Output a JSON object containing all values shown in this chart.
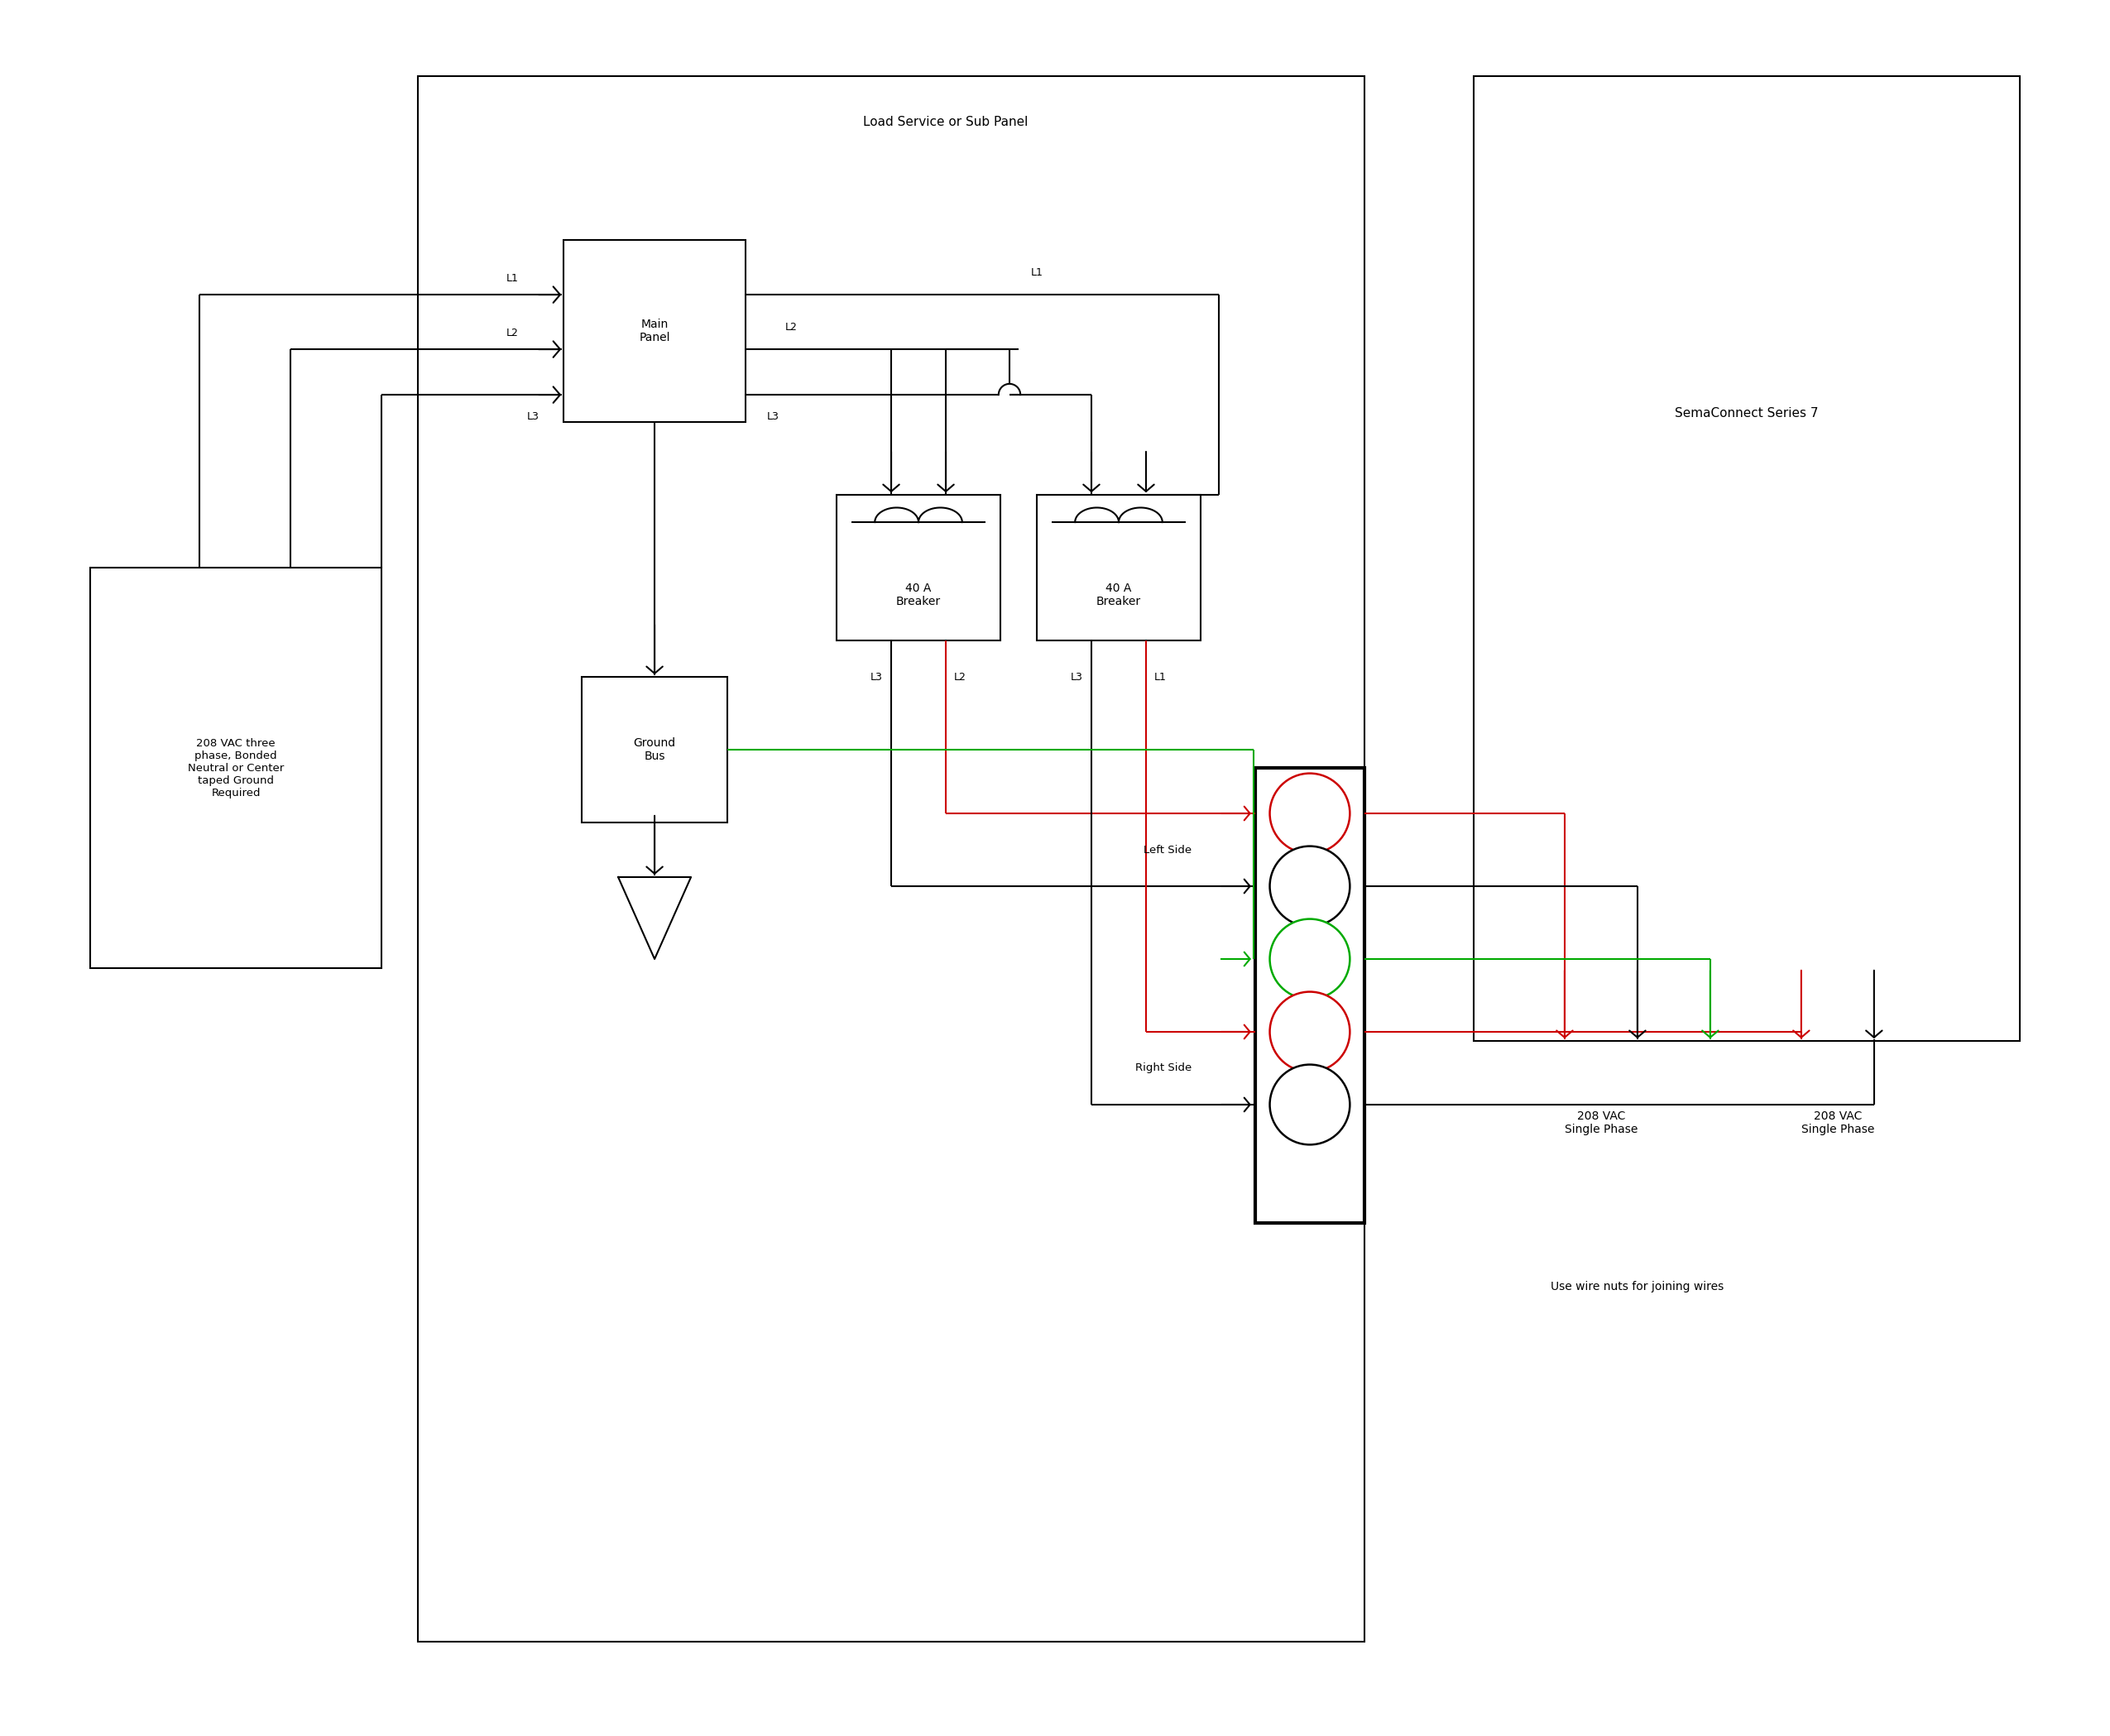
{
  "bg_color": "#ffffff",
  "line_color": "#000000",
  "red_color": "#cc0000",
  "green_color": "#00aa00",
  "fig_width": 25.5,
  "fig_height": 20.98,
  "panel_label": "Load Service or Sub Panel",
  "sema_label": "SemaConnect Series 7",
  "src_label": "208 VAC three\nphase, Bonded\nNeutral or Center\ntaped Ground\nRequired",
  "left_208": "208 VAC\nSingle Phase",
  "right_208": "208 VAC\nSingle Phase",
  "left_side_label": "Left Side",
  "right_side_label": "Right Side",
  "wire_nuts_label": "Use wire nuts for joining wires",
  "ground_bus_label": "Ground\nBus",
  "main_panel_label": "Main\nPanel",
  "breaker_label": "40 A\nBreaker"
}
